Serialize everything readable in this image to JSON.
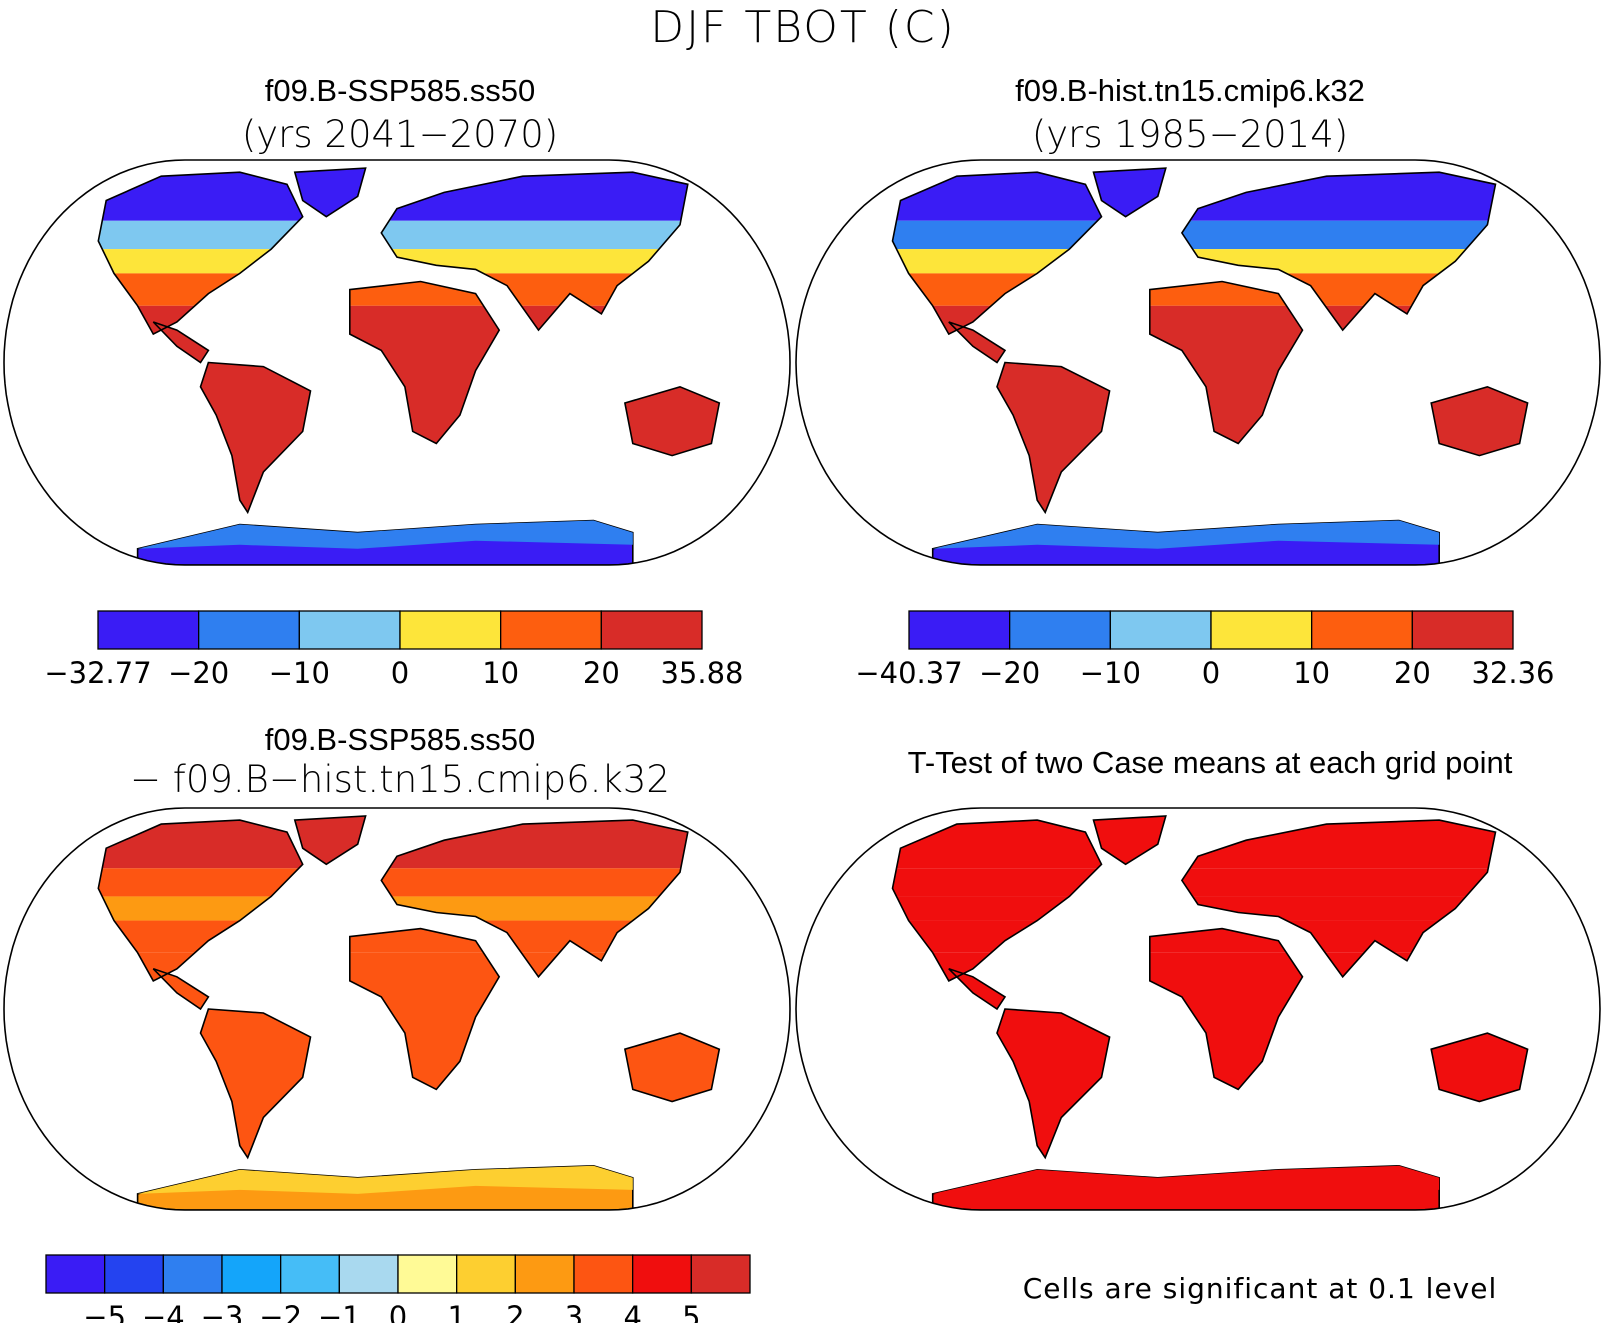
{
  "figure": {
    "title": "DJF TBOT (C)"
  },
  "panels": [
    {
      "id": "future",
      "title": "f09.B-SSP585.ss50",
      "subtitle": "(yrs 2041−2070)",
      "colorbar": {
        "colors": [
          "#3a1cf5",
          "#2f7ff0",
          "#7ec8f0",
          "#fde53a",
          "#fd5e0f",
          "#d82c28"
        ],
        "labels": [
          "−32.77",
          "−20",
          "−10",
          "0",
          "10",
          "20",
          "35.88"
        ]
      }
    },
    {
      "id": "historical",
      "title": "f09.B-hist.tn15.cmip6.k32",
      "subtitle": "(yrs 1985−2014)",
      "colorbar": {
        "colors": [
          "#3a1cf5",
          "#2f7ff0",
          "#7ec8f0",
          "#fde53a",
          "#fd5e0f",
          "#d82c28"
        ],
        "labels": [
          "−40.37",
          "−20",
          "−10",
          "0",
          "10",
          "20",
          "32.36"
        ]
      }
    },
    {
      "id": "difference",
      "title": "f09.B-SSP585.ss50",
      "subtitle": "− f09.B−hist.tn15.cmip6.k32",
      "colorbar": {
        "colors": [
          "#3a1cf5",
          "#2443f0",
          "#2f7ff0",
          "#14a5fa",
          "#45bdf7",
          "#a9d9ef",
          "#fffa96",
          "#fdcf30",
          "#fd9a12",
          "#fd5512",
          "#f00e0e",
          "#d82c28"
        ],
        "labels": [
          "−5",
          "−4",
          "−3",
          "−2",
          "−1",
          "0",
          "1",
          "2",
          "3",
          "4",
          "5"
        ]
      }
    },
    {
      "id": "ttest",
      "title": "T-Test of two Case means at each grid point",
      "note": "Cells are significant at 0.1 level"
    }
  ],
  "palette": {
    "land_future": {
      "north": "#3a1cf5",
      "mid": "#7ec8f0",
      "temperate": "#fde53a",
      "warm": "#fd5e0f",
      "hot": "#d82c28",
      "antarctica": "#3a1cf5",
      "antarctica_edge": "#2f7ff0"
    },
    "land_hist": {
      "north": "#3a1cf5",
      "mid": "#2f7ff0",
      "temperate": "#fde53a",
      "warm": "#fd5e0f",
      "hot": "#d82c28",
      "antarctica": "#3a1cf5",
      "antarctica_edge": "#2f7ff0"
    },
    "land_diff": {
      "north": "#d82c28",
      "mid": "#fd5512",
      "temperate": "#fd9a12",
      "warm": "#fd5512",
      "hot": "#fd5512",
      "antarctica": "#fd9a12",
      "antarctica_edge": "#fdcf30"
    },
    "land_ttest": {
      "north": "#f00e0e",
      "mid": "#f00e0e",
      "temperate": "#f00e0e",
      "warm": "#f00e0e",
      "hot": "#f00e0e",
      "antarctica": "#f00e0e",
      "antarctica_edge": "#f00e0e"
    }
  }
}
